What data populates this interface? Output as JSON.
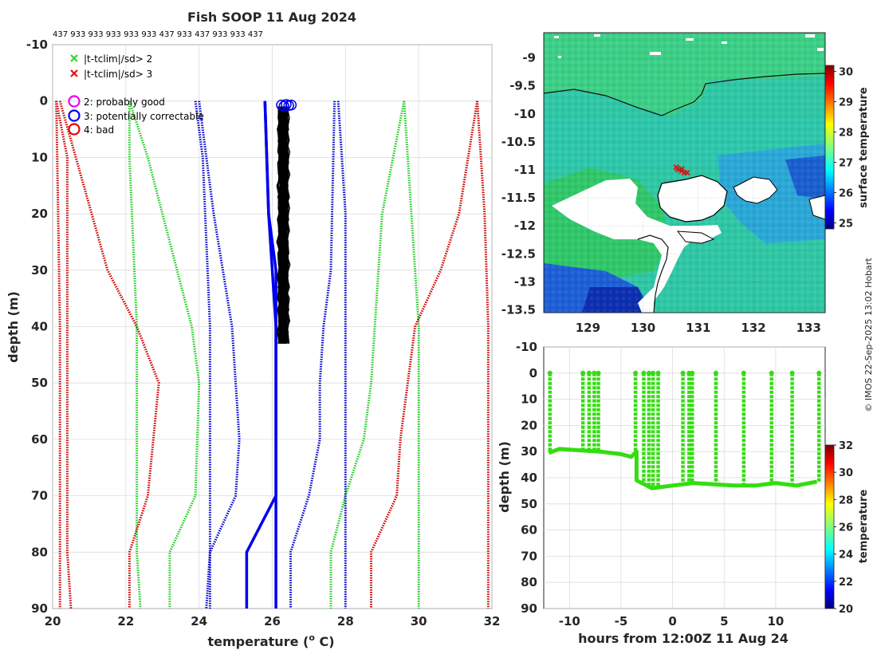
{
  "chart_data": [
    {
      "type": "line",
      "id": "profile",
      "title": "Fish SOOP 11 Aug 2024",
      "top_annotation": "437 933 933 933 933 933 437 933 437 933 933 437",
      "xlabel": "temperature (",
      "xlabel_sup": "o",
      "xlabel_end": " C)",
      "ylabel": "depth (m)",
      "xlim": [
        20,
        32
      ],
      "ylim": [
        -10,
        90
      ],
      "xticks": [
        "20",
        "22",
        "24",
        "26",
        "28",
        "30",
        "32"
      ],
      "yticks": [
        "-10",
        "0",
        "10",
        "20",
        "30",
        "40",
        "50",
        "60",
        "70",
        "80",
        "90"
      ],
      "legend_cross": [
        {
          "label": "|t-tclim|/sd> 2",
          "color": "#22dd22"
        },
        {
          "label": "|t-tclim|/sd> 3",
          "color": "#dd1111"
        }
      ],
      "legend_flags": [
        {
          "label": "2: probably good",
          "color": "#ee00ee"
        },
        {
          "label": "3: potentially correctable",
          "color": "#0000ee"
        },
        {
          "label": "4: bad",
          "color": "#ee0000"
        }
      ],
      "series": [
        {
          "name": "clim -3sd a",
          "color": "#cc0000",
          "style": "dotted",
          "points": [
            [
              20.1,
              0
            ],
            [
              20.2,
              40
            ],
            [
              20.2,
              90
            ]
          ]
        },
        {
          "name": "clim -3sd b",
          "color": "#cc0000",
          "style": "dotted",
          "points": [
            [
              20.2,
              0
            ],
            [
              21.5,
              30
            ],
            [
              22.3,
              40
            ],
            [
              22.9,
              50
            ],
            [
              22.6,
              70
            ],
            [
              22.1,
              80
            ],
            [
              22.1,
              90
            ]
          ]
        },
        {
          "name": "clim -3sd c",
          "color": "#cc0000",
          "style": "dotted",
          "points": [
            [
              20.1,
              0
            ],
            [
              20.4,
              10
            ],
            [
              20.4,
              80
            ],
            [
              20.5,
              90
            ]
          ]
        },
        {
          "name": "clim -2sd a",
          "color": "#22cc22",
          "style": "dotted",
          "points": [
            [
              22.1,
              0
            ],
            [
              22.1,
              10
            ],
            [
              22.3,
              40
            ],
            [
              22.3,
              80
            ],
            [
              22.4,
              90
            ]
          ]
        },
        {
          "name": "clim -2sd b",
          "color": "#22cc22",
          "style": "dotted",
          "points": [
            [
              22.1,
              0
            ],
            [
              22.6,
              10
            ],
            [
              23.4,
              30
            ],
            [
              23.8,
              40
            ],
            [
              24.0,
              50
            ],
            [
              23.9,
              70
            ],
            [
              23.2,
              80
            ],
            [
              23.2,
              90
            ]
          ]
        },
        {
          "name": "clim -1sd a",
          "color": "#0000cc",
          "style": "dotted",
          "points": [
            [
              23.9,
              0
            ],
            [
              24.1,
              10
            ],
            [
              24.3,
              40
            ],
            [
              24.3,
              90
            ]
          ]
        },
        {
          "name": "clim -1sd b",
          "color": "#0000cc",
          "style": "dotted",
          "points": [
            [
              24.0,
              0
            ],
            [
              24.4,
              20
            ],
            [
              24.9,
              40
            ],
            [
              25.1,
              60
            ],
            [
              25.0,
              70
            ],
            [
              24.3,
              80
            ],
            [
              24.2,
              90
            ]
          ]
        },
        {
          "name": "clim mean a",
          "color": "#0000ee",
          "style": "solid",
          "points": [
            [
              25.8,
              0
            ],
            [
              25.9,
              20
            ],
            [
              26.1,
              30
            ],
            [
              26.1,
              90
            ]
          ]
        },
        {
          "name": "clim mean b",
          "color": "#0000ee",
          "style": "solid",
          "points": [
            [
              25.8,
              0
            ],
            [
              25.9,
              20
            ],
            [
              26.1,
              40
            ],
            [
              26.1,
              70
            ],
            [
              25.7,
              75
            ],
            [
              25.3,
              80
            ],
            [
              25.3,
              90
            ]
          ]
        },
        {
          "name": "clim +1sd a",
          "color": "#0000cc",
          "style": "dotted",
          "points": [
            [
              27.7,
              0
            ],
            [
              27.6,
              30
            ],
            [
              27.4,
              40
            ],
            [
              27.3,
              50
            ],
            [
              27.3,
              60
            ],
            [
              27.0,
              70
            ],
            [
              26.5,
              80
            ],
            [
              26.5,
              90
            ]
          ]
        },
        {
          "name": "clim +1sd b",
          "color": "#0000cc",
          "style": "dotted",
          "points": [
            [
              27.8,
              0
            ],
            [
              28.0,
              20
            ],
            [
              28.0,
              90
            ]
          ]
        },
        {
          "name": "clim +2sd a",
          "color": "#22cc22",
          "style": "dotted",
          "points": [
            [
              29.6,
              0
            ],
            [
              29.0,
              20
            ],
            [
              28.8,
              40
            ],
            [
              28.7,
              50
            ],
            [
              28.5,
              60
            ],
            [
              28.0,
              70
            ],
            [
              27.6,
              80
            ],
            [
              27.6,
              90
            ]
          ]
        },
        {
          "name": "clim +2sd b",
          "color": "#22cc22",
          "style": "dotted",
          "points": [
            [
              29.6,
              0
            ],
            [
              29.8,
              20
            ],
            [
              30.0,
              40
            ],
            [
              30.0,
              90
            ]
          ]
        },
        {
          "name": "clim +3sd a",
          "color": "#cc0000",
          "style": "dotted",
          "points": [
            [
              31.6,
              0
            ],
            [
              31.1,
              20
            ],
            [
              30.6,
              30
            ],
            [
              29.9,
              40
            ],
            [
              29.5,
              60
            ],
            [
              29.4,
              70
            ],
            [
              28.7,
              80
            ],
            [
              28.7,
              90
            ]
          ]
        },
        {
          "name": "clim +3sd b",
          "color": "#cc0000",
          "style": "dotted",
          "points": [
            [
              31.6,
              0
            ],
            [
              31.8,
              20
            ],
            [
              31.9,
              40
            ],
            [
              31.9,
              90
            ]
          ]
        }
      ],
      "observations": {
        "color": "#000000",
        "temp_range": [
          26.2,
          26.5
        ],
        "depth_range": [
          0,
          44
        ],
        "flag_markers": [
          [
            26.25,
            0.7
          ],
          [
            26.32,
            0.9
          ],
          [
            26.38,
            0.6
          ],
          [
            26.45,
            0.8
          ],
          [
            26.52,
            0.7
          ]
        ]
      }
    },
    {
      "type": "heatmap",
      "id": "map",
      "xlim": [
        128.2,
        133.3
      ],
      "ylim": [
        -13.55,
        -8.55
      ],
      "xticks": [
        "129",
        "130",
        "131",
        "132",
        "133"
      ],
      "yticks": [
        "-9",
        "-9.5",
        "-10",
        "-10.5",
        "-11",
        "-11.5",
        "-12",
        "-12.5",
        "-13",
        "-13.5"
      ],
      "colorbar_label": "surface temperature",
      "colorbar_ticks": [
        "25",
        "26",
        "27",
        "28",
        "29",
        "30"
      ],
      "colorbar_range": [
        24.8,
        30.2
      ],
      "track_points": [
        [
          130.6,
          -10.95
        ],
        [
          130.65,
          -11.0
        ],
        [
          130.7,
          -11.02
        ],
        [
          130.75,
          -11.05
        ],
        [
          130.8,
          -11.05
        ],
        [
          130.62,
          -10.98
        ],
        [
          130.7,
          -10.98
        ]
      ]
    },
    {
      "type": "scatter",
      "id": "timeseries",
      "xlabel": "hours from 12:00Z 11 Aug 24",
      "ylabel": "depth (m)",
      "xlim": [
        -12.5,
        14.8
      ],
      "ylim": [
        -10,
        90
      ],
      "xticks": [
        "-10",
        "-5",
        "0",
        "5",
        "10"
      ],
      "yticks": [
        "-10",
        "0",
        "10",
        "20",
        "30",
        "40",
        "50",
        "60",
        "70",
        "80",
        "90"
      ],
      "colorbar_label": "temperature",
      "colorbar_ticks": [
        "20",
        "22",
        "24",
        "26",
        "28",
        "30",
        "32"
      ],
      "colorbar_range": [
        20,
        32
      ],
      "color": "#33dd11",
      "bottom_track": [
        [
          -12,
          30.5
        ],
        [
          -11,
          29
        ],
        [
          -9,
          29.5
        ],
        [
          -7,
          30
        ],
        [
          -5,
          31
        ],
        [
          -4,
          32
        ],
        [
          -3.5,
          30
        ],
        [
          -3.5,
          41
        ],
        [
          -2,
          44
        ],
        [
          0,
          43
        ],
        [
          2,
          42
        ],
        [
          4,
          42.5
        ],
        [
          6,
          43
        ],
        [
          8,
          43
        ],
        [
          10,
          42
        ],
        [
          12,
          43
        ],
        [
          14,
          41.5
        ]
      ],
      "spikes": [
        -11.9,
        -8.7,
        -8.1,
        -7.6,
        -7.2,
        -3.6,
        -2.8,
        -2.3,
        -1.9,
        -1.4,
        1.0,
        1.6,
        1.9,
        4.2,
        6.9,
        9.6,
        11.6,
        14.2
      ]
    }
  ],
  "credit": "© IMOS 22-Sep-2025 13:02 Hobart"
}
